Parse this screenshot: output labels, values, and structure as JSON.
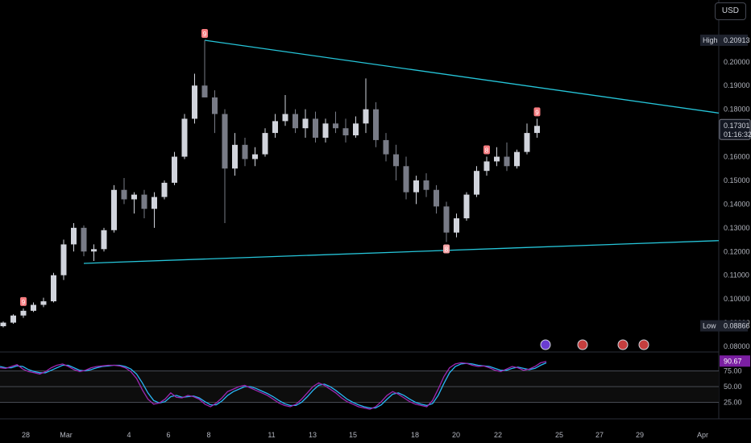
{
  "toolbar": {
    "currency_label": "USD"
  },
  "price_scale": {
    "high_label": "High",
    "high_value": "0.20913",
    "low_label": "Low",
    "low_value": "0.08866",
    "last_price": "0.17301",
    "countdown": "01:16:32",
    "ticks": [
      "0.20000",
      "0.19000",
      "0.18000",
      "0.17000",
      "0.16000",
      "0.15000",
      "0.14000",
      "0.13000",
      "0.12000",
      "0.11000",
      "0.10000",
      "0.09000",
      "0.08000"
    ]
  },
  "indicator": {
    "value": "90.67",
    "levels": [
      "75.00",
      "50.00",
      "25.00"
    ]
  },
  "markers": [
    "9",
    "9",
    "8",
    "8",
    "9"
  ],
  "time_axis": [
    "28",
    "Mar",
    "4",
    "6",
    "8",
    "11",
    "13",
    "15",
    "18",
    "20",
    "22",
    "25",
    "27",
    "29",
    "Apr"
  ],
  "colors": {
    "up": "#d1d4dc",
    "down": "#787b86",
    "trendline": "#26c6da",
    "k_line": "#29b6f6",
    "d_line": "#9c27b0",
    "marker": "#f77c80"
  },
  "chart_data": [
    {
      "type": "candlestick",
      "x_labels": [
        "28",
        "Mar",
        "4",
        "6",
        "8",
        "11",
        "13",
        "15",
        "18",
        "20",
        "22",
        "25",
        "27",
        "29",
        "Apr"
      ],
      "ylim": [
        0.08,
        0.2125
      ],
      "series": [
        {
          "values": [
            [
              0.0885,
              0.0905,
              0.088,
              0.09
            ],
            [
              0.09,
              0.0935,
              0.0895,
              0.093
            ],
            [
              0.093,
              0.096,
              0.092,
              0.095
            ],
            [
              0.095,
              0.0985,
              0.0945,
              0.0975
            ],
            [
              0.0975,
              0.1005,
              0.0965,
              0.099
            ],
            [
              0.099,
              0.111,
              0.0985,
              0.11
            ],
            [
              0.11,
              0.125,
              0.108,
              0.123
            ],
            [
              0.123,
              0.132,
              0.12,
              0.13
            ],
            [
              0.13,
              0.131,
              0.118,
              0.12
            ],
            [
              0.12,
              0.123,
              0.116,
              0.121
            ],
            [
              0.121,
              0.13,
              0.12,
              0.129
            ],
            [
              0.129,
              0.148,
              0.128,
              0.146
            ],
            [
              0.146,
              0.151,
              0.14,
              0.142
            ],
            [
              0.142,
              0.145,
              0.136,
              0.144
            ],
            [
              0.144,
              0.146,
              0.134,
              0.138
            ],
            [
              0.138,
              0.145,
              0.13,
              0.143
            ],
            [
              0.143,
              0.15,
              0.142,
              0.149
            ],
            [
              0.149,
              0.162,
              0.148,
              0.16
            ],
            [
              0.16,
              0.178,
              0.159,
              0.176
            ],
            [
              0.176,
              0.195,
              0.174,
              0.19
            ],
            [
              0.19,
              0.2091,
              0.185,
              0.185
            ],
            [
              0.185,
              0.188,
              0.17,
              0.178
            ],
            [
              0.178,
              0.18,
              0.132,
              0.155
            ],
            [
              0.155,
              0.17,
              0.152,
              0.165
            ],
            [
              0.165,
              0.168,
              0.156,
              0.159
            ],
            [
              0.159,
              0.164,
              0.156,
              0.161
            ],
            [
              0.161,
              0.172,
              0.16,
              0.17
            ],
            [
              0.17,
              0.178,
              0.168,
              0.175
            ],
            [
              0.175,
              0.186,
              0.173,
              0.178
            ],
            [
              0.178,
              0.18,
              0.17,
              0.172
            ],
            [
              0.172,
              0.18,
              0.168,
              0.176
            ],
            [
              0.176,
              0.179,
              0.166,
              0.168
            ],
            [
              0.168,
              0.176,
              0.166,
              0.174
            ],
            [
              0.174,
              0.179,
              0.17,
              0.172
            ],
            [
              0.172,
              0.176,
              0.166,
              0.169
            ],
            [
              0.169,
              0.177,
              0.168,
              0.174
            ],
            [
              0.174,
              0.193,
              0.17,
              0.18
            ],
            [
              0.18,
              0.183,
              0.164,
              0.167
            ],
            [
              0.167,
              0.17,
              0.158,
              0.161
            ],
            [
              0.161,
              0.165,
              0.15,
              0.156
            ],
            [
              0.156,
              0.16,
              0.142,
              0.145
            ],
            [
              0.145,
              0.152,
              0.14,
              0.15
            ],
            [
              0.15,
              0.153,
              0.143,
              0.146
            ],
            [
              0.146,
              0.148,
              0.136,
              0.139
            ],
            [
              0.139,
              0.141,
              0.124,
              0.128
            ],
            [
              0.128,
              0.136,
              0.126,
              0.134
            ],
            [
              0.134,
              0.145,
              0.133,
              0.144
            ],
            [
              0.144,
              0.156,
              0.143,
              0.154
            ],
            [
              0.154,
              0.16,
              0.152,
              0.158
            ],
            [
              0.158,
              0.164,
              0.156,
              0.16
            ],
            [
              0.16,
              0.166,
              0.154,
              0.156
            ],
            [
              0.156,
              0.163,
              0.155,
              0.162
            ],
            [
              0.162,
              0.174,
              0.161,
              0.17
            ],
            [
              0.17,
              0.176,
              0.168,
              0.173
            ]
          ]
        }
      ],
      "trendlines": [
        {
          "from": [
            20,
            0.2091
          ],
          "to": [
            100,
            0.161
          ]
        },
        {
          "from": [
            8,
            0.115
          ],
          "to": [
            100,
            0.129
          ]
        }
      ]
    },
    {
      "type": "line",
      "title": "",
      "ylim": [
        0,
        100
      ],
      "levels": [
        75,
        50,
        25
      ],
      "series": [
        {
          "name": "",
          "values": [
            80,
            79,
            82,
            85,
            78,
            74,
            72,
            70,
            74,
            80,
            84,
            86,
            82,
            77,
            74,
            76,
            80,
            82,
            83,
            84,
            84,
            83,
            80,
            74,
            63,
            45,
            30,
            22,
            24,
            30,
            40,
            33,
            32,
            36,
            34,
            30,
            22,
            18,
            24,
            32,
            42,
            46,
            50,
            52,
            48,
            44,
            40,
            36,
            30,
            24,
            20,
            18,
            22,
            30,
            40,
            50,
            56,
            52,
            46,
            40,
            32,
            26,
            22,
            18,
            16,
            14,
            18,
            26,
            36,
            42,
            38,
            32,
            26,
            22,
            20,
            18,
            28,
            46,
            66,
            80,
            86,
            88,
            87,
            84,
            82,
            83,
            80,
            76,
            74,
            78,
            82,
            80,
            76,
            78,
            82,
            88,
            90
          ]
        },
        {
          "name": "",
          "values": [
            82,
            80,
            80,
            83,
            82,
            77,
            74,
            72,
            72,
            76,
            80,
            84,
            84,
            80,
            76,
            75,
            77,
            80,
            82,
            83,
            84,
            84,
            82,
            78,
            70,
            56,
            40,
            28,
            24,
            26,
            34,
            36,
            33,
            34,
            35,
            32,
            26,
            21,
            21,
            27,
            36,
            42,
            46,
            50,
            50,
            47,
            43,
            39,
            34,
            28,
            23,
            20,
            20,
            25,
            34,
            44,
            52,
            54,
            50,
            44,
            37,
            30,
            25,
            21,
            18,
            16,
            16,
            21,
            30,
            38,
            40,
            36,
            30,
            25,
            22,
            20,
            23,
            36,
            55,
            72,
            82,
            86,
            87,
            86,
            84,
            83,
            82,
            79,
            76,
            76,
            79,
            81,
            79,
            77,
            79,
            84,
            88
          ]
        }
      ]
    }
  ]
}
